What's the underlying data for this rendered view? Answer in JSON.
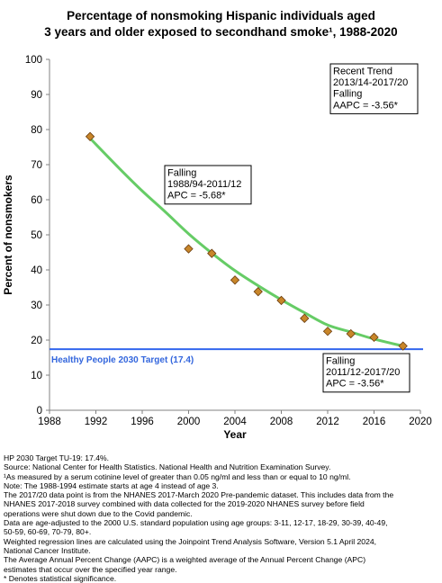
{
  "chart_data": {
    "type": "scatter",
    "title_line1": "Percentage of nonsmoking Hispanic individuals aged",
    "title_line2": "3 years and older exposed to secondhand smoke¹, 1988-2020",
    "xlabel": "Year",
    "ylabel": "Percent of nonsmokers",
    "xlim": [
      1988,
      2020
    ],
    "ylim": [
      0,
      100
    ],
    "xticks": [
      1988,
      1992,
      1996,
      2000,
      2004,
      2008,
      2012,
      2016,
      2020
    ],
    "yticks": [
      0,
      10,
      20,
      30,
      40,
      50,
      60,
      70,
      80,
      90,
      100
    ],
    "grid": false,
    "points": [
      {
        "x": 1991.5,
        "y": 78.0
      },
      {
        "x": 2000.0,
        "y": 46.0
      },
      {
        "x": 2002.0,
        "y": 44.7
      },
      {
        "x": 2004.0,
        "y": 37.1
      },
      {
        "x": 2006.0,
        "y": 33.8
      },
      {
        "x": 2008.0,
        "y": 31.3
      },
      {
        "x": 2010.0,
        "y": 26.2
      },
      {
        "x": 2012.0,
        "y": 22.5
      },
      {
        "x": 2014.0,
        "y": 21.8
      },
      {
        "x": 2016.0,
        "y": 20.8
      },
      {
        "x": 2018.5,
        "y": 18.3
      }
    ],
    "trend_line": [
      {
        "x": 1991.5,
        "y": 77.5
      },
      {
        "x": 1994.0,
        "y": 69.0
      },
      {
        "x": 1996.0,
        "y": 62.5
      },
      {
        "x": 1998.0,
        "y": 56.5
      },
      {
        "x": 2000.0,
        "y": 50.3
      },
      {
        "x": 2002.0,
        "y": 44.8
      },
      {
        "x": 2004.0,
        "y": 39.8
      },
      {
        "x": 2006.0,
        "y": 35.5
      },
      {
        "x": 2008.0,
        "y": 31.5
      },
      {
        "x": 2010.0,
        "y": 27.8
      },
      {
        "x": 2012.0,
        "y": 24.3
      },
      {
        "x": 2014.0,
        "y": 22.3
      },
      {
        "x": 2016.0,
        "y": 20.3
      },
      {
        "x": 2018.5,
        "y": 18.3
      }
    ],
    "target": {
      "value": 17.4,
      "label": "Healthy People 2030 Target (17.4)"
    },
    "annotations": [
      {
        "id": "recent-trend",
        "lines": [
          "Recent Trend",
          "2013/14-2017/20",
          "Falling",
          "AAPC = -3.56*"
        ]
      },
      {
        "id": "segment-1",
        "lines": [
          "Falling",
          "1988/94-2011/12",
          "APC = -5.68*"
        ]
      },
      {
        "id": "segment-2",
        "lines": [
          "Falling",
          "2011/12-2017/20",
          "APC = -3.56*"
        ]
      }
    ],
    "colors": {
      "trend": "#66cc66",
      "target": "#3366ee",
      "target_text": "#3366dd",
      "marker_fill": "#c8862a",
      "marker_stroke": "#6b3d0f",
      "axis": "#808080"
    }
  },
  "notes": [
    "HP 2030 Target TU-19: 17.4%.",
    "Source: National Center for Health Statistics. National Health and Nutrition Examination Survey.",
    "¹As measured by a serum cotinine level of greater than 0.05 ng/ml and less than or equal to 10 ng/ml.",
    "Note: The 1988-1994 estimate starts at age 4 instead of age 3.",
    "The 2017/20 data point is from the NHANES 2017-March 2020 Pre-pandemic dataset. This includes data from the",
    "NHANES 2017-2018 survey combined with data collected for the 2019-2020 NHANES survey before field",
    "operations were shut down due to the Covid pandemic.",
    "Data are age-adjusted to the 2000 U.S. standard population using age groups: 3-11, 12-17, 18-29, 30-39, 40-49,",
    "50-59, 60-69, 70-79, 80+.",
    "Weighted regression lines are calculated using the Joinpoint Trend Analysis Software, Version 5.1 April 2024,",
    "National Cancer Institute.",
    "The Average Annual Percent Change (AAPC) is a weighted average of the Annual Percent Change (APC)",
    "estimates that occur over the specified year range.",
    "* Denotes statistical significance."
  ]
}
